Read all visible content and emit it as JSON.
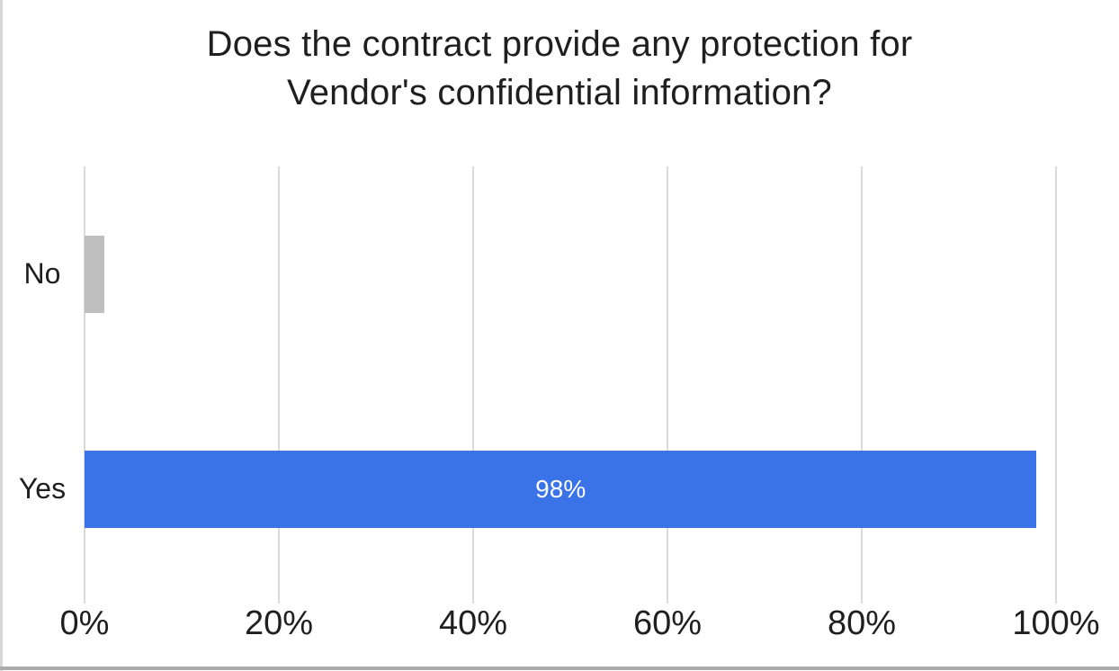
{
  "window": {
    "background": "#ffffff",
    "left_border_color": "#d6d6d6",
    "bottom_border_color": "#ababab"
  },
  "chart_data": {
    "type": "bar",
    "orientation": "horizontal",
    "title": "Does the contract provide any protection for Vendor's confidential information?",
    "title_lines": [
      "Does the contract provide any protection for",
      "Vendor's confidential information?"
    ],
    "categories": [
      "No",
      "Yes"
    ],
    "values": [
      2,
      98
    ],
    "unit": "%",
    "data_labels": [
      "",
      "98%"
    ],
    "bar_colors": [
      "#bfbfbf",
      "#3a73e8"
    ],
    "xlim": [
      0,
      100
    ],
    "x_ticks": [
      0,
      20,
      40,
      60,
      80,
      100
    ],
    "x_tick_labels": [
      "0%",
      "20%",
      "40%",
      "60%",
      "80%",
      "100%"
    ],
    "grid": true,
    "gridline_color": "#d9d9d9",
    "legend": false,
    "text_color": "#1f1f1f",
    "data_label_color": "#ffffff"
  }
}
